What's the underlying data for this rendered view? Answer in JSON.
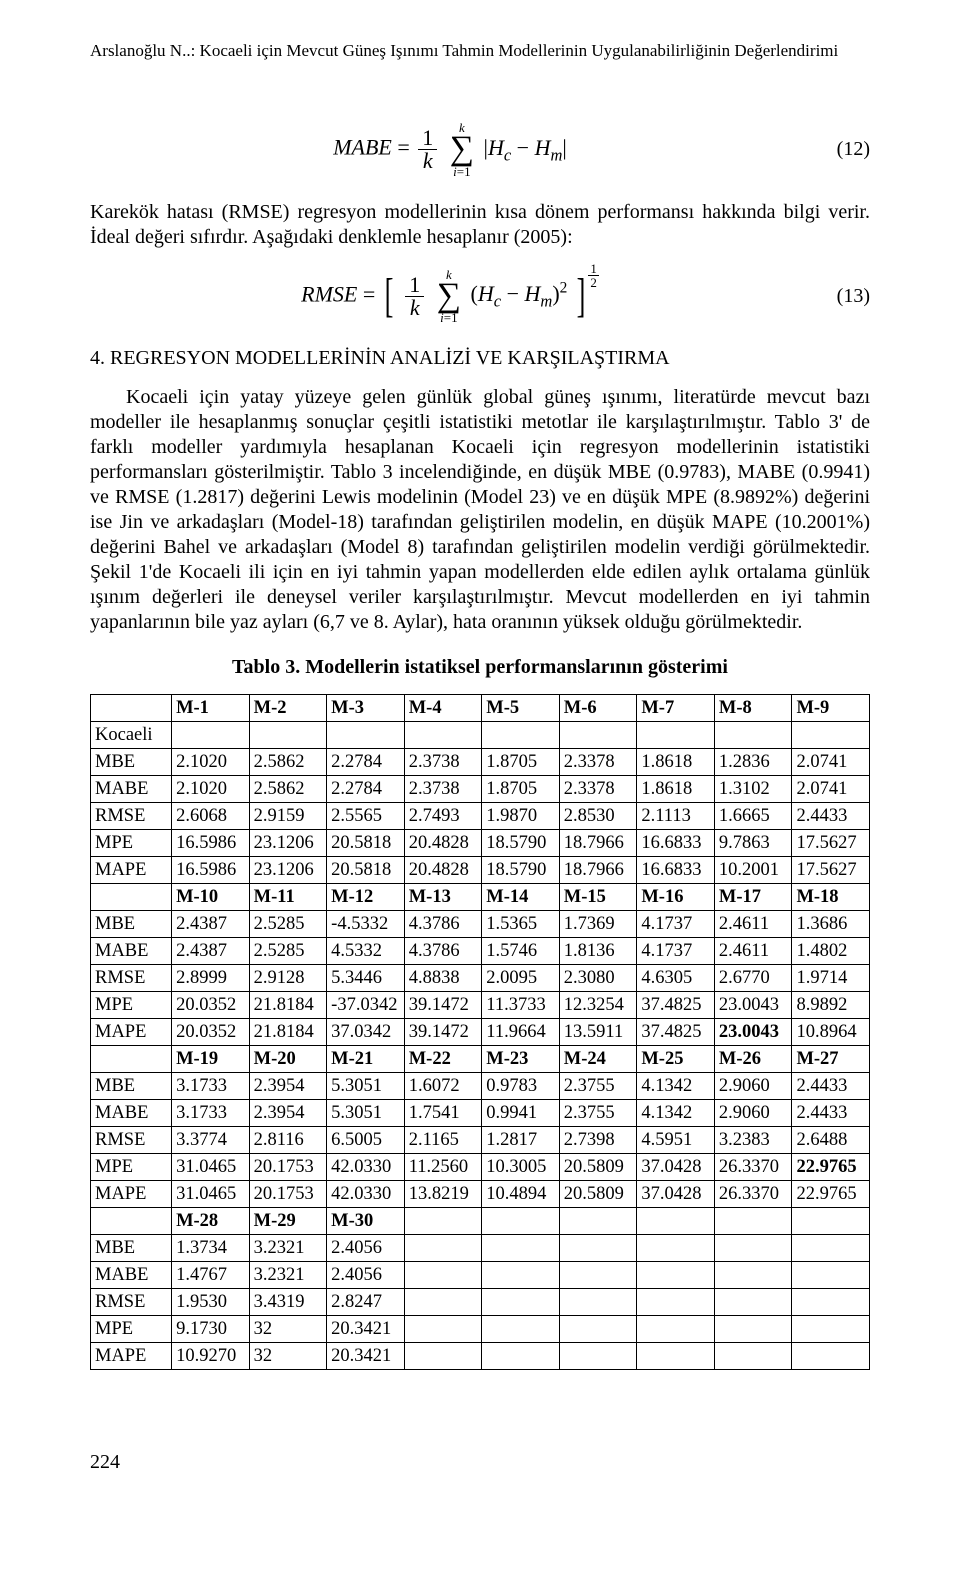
{
  "header": {
    "running_head": "Arslanoğlu N..: Kocaeli için Mevcut Güneş Işınımı Tahmin Modellerinin Uygulanabilirliğinin Değerlendirimi"
  },
  "eq12": {
    "lhs": "MABE",
    "num": "(12)"
  },
  "para1": "Karekök hatası (RMSE) regresyon modellerinin kısa dönem performansı hakkında bilgi verir. İdeal değeri sıfırdır. Aşağıdaki denklemle hesaplanır (2005):",
  "eq13": {
    "lhs": "RMSE",
    "num": "(13)"
  },
  "section_heading": "4.  REGRESYON MODELLERİNİN ANALİZİ VE KARŞILAŞTIRMA",
  "para2": "Kocaeli için yatay yüzeye gelen günlük global güneş ışınımı, literatürde mevcut bazı modeller ile hesaplanmış sonuçlar çeşitli istatistiki metotlar ile karşılaştırılmıştır. Tablo 3' de farklı modeller yardımıyla hesaplanan Kocaeli için regresyon modellerinin istatistiki performansları gösterilmiştir. Tablo 3 incelendiğinde, en düşük MBE (0.9783), MABE (0.9941) ve RMSE (1.2817) değerini Lewis modelinin (Model 23) ve en düşük MPE (8.9892%) değerini ise Jin ve arkadaşları (Model-18) tarafından geliştirilen modelin, en düşük MAPE (10.2001%) değerini Bahel ve arkadaşları (Model 8) tarafından geliştirilen modelin verdiği görülmektedir. Şekil 1'de Kocaeli ili için en iyi tahmin yapan modellerden elde edilen aylık ortalama günlük ışınım değerleri ile deneysel veriler karşılaştırılmıştır. Mevcut modellerden en iyi tahmin yapanlarının bile yaz ayları (6,7 ve 8. Aylar), hata oranının yüksek olduğu görülmektedir.",
  "table": {
    "caption": "Tablo 3.  Modellerin istatiksel performanslarının gösterimi",
    "col_widths_pct": [
      10.4,
      9.95,
      9.95,
      9.95,
      9.95,
      9.95,
      9.95,
      9.95,
      9.95,
      9.95
    ],
    "row_labels": [
      "MBE",
      "MABE",
      "RMSE",
      "MPE",
      "MAPE"
    ],
    "section_row_label": "Kocaeli",
    "bold_cells": {
      "1": {
        "MAPE": 7
      },
      "2": {
        "MPE": 8
      },
      "3": {
        "MBE": 4,
        "MABE": 4,
        "RMSE": 4
      }
    },
    "blocks": [
      {
        "headers": [
          "M-1",
          "M-2",
          "M-3",
          "M-4",
          "M-5",
          "M-6",
          "M-7",
          "M-8",
          "M-9"
        ],
        "show_section_row": true,
        "rows": [
          [
            "2.1020",
            "2.5862",
            "2.2784",
            "2.3738",
            "1.8705",
            "2.3378",
            "1.8618",
            "1.2836",
            "2.0741"
          ],
          [
            "2.1020",
            "2.5862",
            "2.2784",
            "2.3738",
            "1.8705",
            "2.3378",
            "1.8618",
            "1.3102",
            "2.0741"
          ],
          [
            "2.6068",
            "2.9159",
            "2.5565",
            "2.7493",
            "1.9870",
            "2.8530",
            "2.1113",
            "1.6665",
            "2.4433"
          ],
          [
            "16.5986",
            "23.1206",
            "20.5818",
            "20.4828",
            "18.5790",
            "18.7966",
            "16.6833",
            "9.7863",
            "17.5627"
          ],
          [
            "16.5986",
            "23.1206",
            "20.5818",
            "20.4828",
            "18.5790",
            "18.7966",
            "16.6833",
            "10.2001",
            "17.5627"
          ]
        ]
      },
      {
        "headers": [
          "M-10",
          "M-11",
          "M-12",
          "M-13",
          "M-14",
          "M-15",
          "M-16",
          "M-17",
          "M-18"
        ],
        "show_section_row": false,
        "rows": [
          [
            "2.4387",
            "2.5285",
            "-4.5332",
            "4.3786",
            "1.5365",
            "1.7369",
            "4.1737",
            "2.4611",
            "1.3686"
          ],
          [
            "2.4387",
            "2.5285",
            "4.5332",
            "4.3786",
            "1.5746",
            "1.8136",
            "4.1737",
            "2.4611",
            "1.4802"
          ],
          [
            "2.8999",
            "2.9128",
            "5.3446",
            "4.8838",
            "2.0095",
            "2.3080",
            "4.6305",
            "2.6770",
            "1.9714"
          ],
          [
            "20.0352",
            "21.8184",
            "-37.0342",
            "39.1472",
            "11.3733",
            "12.3254",
            "37.4825",
            "23.0043",
            "8.9892"
          ],
          [
            "20.0352",
            "21.8184",
            "37.0342",
            "39.1472",
            "11.9664",
            "13.5911",
            "37.4825",
            "23.0043",
            "10.8964"
          ]
        ]
      },
      {
        "headers": [
          "M-19",
          "M-20",
          "M-21",
          "M-22",
          "M-23",
          "M-24",
          "M-25",
          "M-26",
          "M-27"
        ],
        "show_section_row": false,
        "rows": [
          [
            "3.1733",
            "2.3954",
            "5.3051",
            "1.6072",
            "0.9783",
            "2.3755",
            "4.1342",
            "2.9060",
            "2.4433"
          ],
          [
            "3.1733",
            "2.3954",
            "5.3051",
            "1.7541",
            "0.9941",
            "2.3755",
            "4.1342",
            "2.9060",
            "2.4433"
          ],
          [
            "3.3774",
            "2.8116",
            "6.5005",
            "2.1165",
            "1.2817",
            "2.7398",
            "4.5951",
            "3.2383",
            "2.6488"
          ],
          [
            "31.0465",
            "20.1753",
            "42.0330",
            "11.2560",
            "10.3005",
            "20.5809",
            "37.0428",
            "26.3370",
            "22.9765"
          ],
          [
            "31.0465",
            "20.1753",
            "42.0330",
            "13.8219",
            "10.4894",
            "20.5809",
            "37.0428",
            "26.3370",
            "22.9765"
          ]
        ]
      },
      {
        "headers": [
          "M-28",
          "M-29",
          "M-30"
        ],
        "show_section_row": false,
        "rows": [
          [
            "1.3734",
            "3.2321",
            "2.4056"
          ],
          [
            "1.4767",
            "3.2321",
            "2.4056"
          ],
          [
            "1.9530",
            "3.4319",
            "2.8247"
          ],
          [
            "9.1730",
            "32",
            "20.3421"
          ],
          [
            "10.9270",
            "32",
            "20.3421"
          ]
        ]
      }
    ]
  },
  "page_number": "224"
}
